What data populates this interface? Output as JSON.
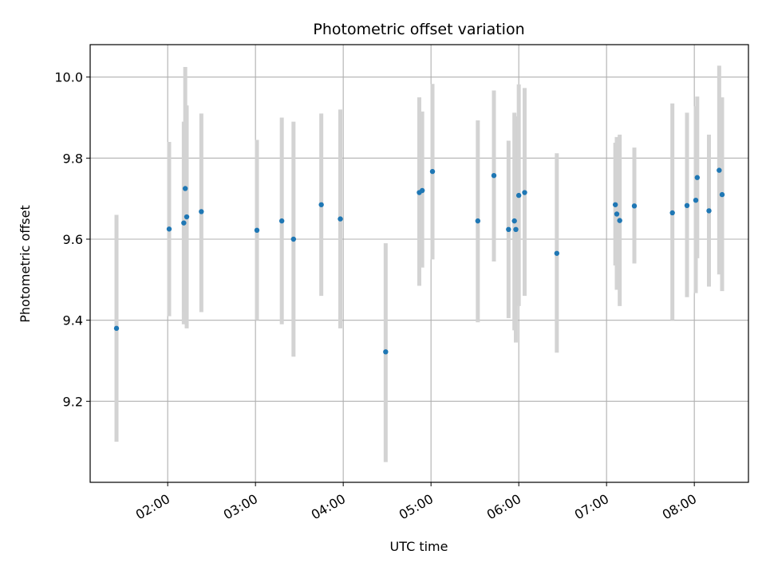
{
  "chart_data": {
    "type": "scatter",
    "title": "Photometric offset variation",
    "xlabel": "UTC time",
    "ylabel": "Photometric offset",
    "x_unit": "UTC time (HH:MM)",
    "xlim": [
      "01:07",
      "08:37"
    ],
    "ylim": [
      9.0,
      10.08
    ],
    "x_ticks": [
      "02:00",
      "03:00",
      "04:00",
      "05:00",
      "06:00",
      "07:00",
      "08:00"
    ],
    "y_ticks": [
      9.2,
      9.4,
      9.6,
      9.8,
      10.0
    ],
    "y_tick_labels": [
      "9.2",
      "9.4",
      "9.6",
      "9.8",
      "10.0"
    ],
    "grid": true,
    "marker_color": "#1f77b4",
    "errorbar_color": "#d3d3d3",
    "points": [
      {
        "x": "01:25",
        "y": 9.38,
        "y_low": 9.1,
        "y_high": 9.66
      },
      {
        "x": "02:01",
        "y": 9.625,
        "y_low": 9.41,
        "y_high": 9.84
      },
      {
        "x": "02:11",
        "y": 9.64,
        "y_low": 9.39,
        "y_high": 9.89
      },
      {
        "x": "02:12",
        "y": 9.725,
        "y_low": 9.42,
        "y_high": 10.025
      },
      {
        "x": "02:13",
        "y": 9.655,
        "y_low": 9.38,
        "y_high": 9.93
      },
      {
        "x": "02:23",
        "y": 9.668,
        "y_low": 9.42,
        "y_high": 9.91
      },
      {
        "x": "03:01",
        "y": 9.622,
        "y_low": 9.4,
        "y_high": 9.845
      },
      {
        "x": "03:18",
        "y": 9.645,
        "y_low": 9.39,
        "y_high": 9.9
      },
      {
        "x": "03:26",
        "y": 9.6,
        "y_low": 9.31,
        "y_high": 9.89
      },
      {
        "x": "03:45",
        "y": 9.685,
        "y_low": 9.46,
        "y_high": 9.91
      },
      {
        "x": "03:58",
        "y": 9.65,
        "y_low": 9.38,
        "y_high": 9.92
      },
      {
        "x": "04:29",
        "y": 9.322,
        "y_low": 9.05,
        "y_high": 9.59
      },
      {
        "x": "04:52",
        "y": 9.715,
        "y_low": 9.485,
        "y_high": 9.95
      },
      {
        "x": "04:54",
        "y": 9.72,
        "y_low": 9.53,
        "y_high": 9.915
      },
      {
        "x": "05:01",
        "y": 9.767,
        "y_low": 9.55,
        "y_high": 9.983
      },
      {
        "x": "05:32",
        "y": 9.645,
        "y_low": 9.395,
        "y_high": 9.893
      },
      {
        "x": "05:43",
        "y": 9.757,
        "y_low": 9.545,
        "y_high": 9.967
      },
      {
        "x": "05:53",
        "y": 9.624,
        "y_low": 9.405,
        "y_high": 9.843
      },
      {
        "x": "05:57",
        "y": 9.645,
        "y_low": 9.375,
        "y_high": 9.912
      },
      {
        "x": "05:58",
        "y": 9.624,
        "y_low": 9.345,
        "y_high": 9.903
      },
      {
        "x": "06:00",
        "y": 9.708,
        "y_low": 9.435,
        "y_high": 9.982
      },
      {
        "x": "06:04",
        "y": 9.715,
        "y_low": 9.46,
        "y_high": 9.973
      },
      {
        "x": "06:26",
        "y": 9.565,
        "y_low": 9.32,
        "y_high": 9.812
      },
      {
        "x": "07:06",
        "y": 9.685,
        "y_low": 9.535,
        "y_high": 9.838
      },
      {
        "x": "07:07",
        "y": 9.662,
        "y_low": 9.475,
        "y_high": 9.852
      },
      {
        "x": "07:09",
        "y": 9.646,
        "y_low": 9.435,
        "y_high": 9.858
      },
      {
        "x": "07:19",
        "y": 9.682,
        "y_low": 9.54,
        "y_high": 9.826
      },
      {
        "x": "07:45",
        "y": 9.665,
        "y_low": 9.4,
        "y_high": 9.935
      },
      {
        "x": "07:55",
        "y": 9.683,
        "y_low": 9.457,
        "y_high": 9.912
      },
      {
        "x": "08:01",
        "y": 9.696,
        "y_low": 9.467,
        "y_high": 9.928
      },
      {
        "x": "08:02",
        "y": 9.752,
        "y_low": 9.553,
        "y_high": 9.952
      },
      {
        "x": "08:10",
        "y": 9.67,
        "y_low": 9.483,
        "y_high": 9.858
      },
      {
        "x": "08:17",
        "y": 9.77,
        "y_low": 9.513,
        "y_high": 10.028
      },
      {
        "x": "08:19",
        "y": 9.71,
        "y_low": 9.472,
        "y_high": 9.95
      }
    ]
  }
}
